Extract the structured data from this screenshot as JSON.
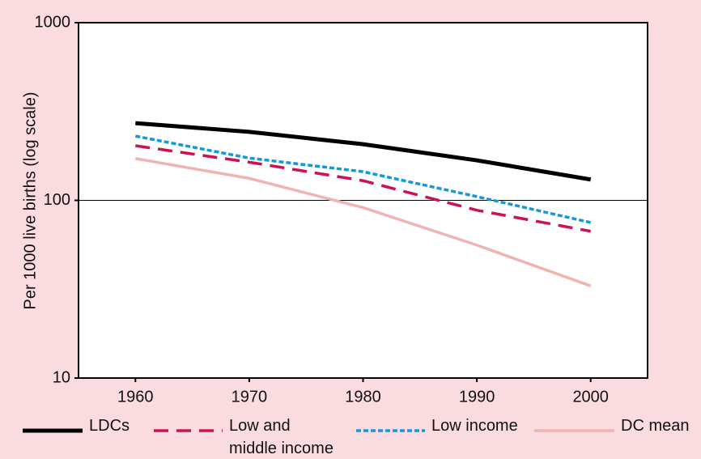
{
  "chart_data": {
    "type": "line",
    "y_label": "Per 1000 live births (log scale)",
    "x": [
      1960,
      1970,
      1980,
      1990,
      2000
    ],
    "xlim": [
      1955,
      2005
    ],
    "xticks": [
      1960,
      1970,
      1980,
      1990,
      2000
    ],
    "ylim": [
      10,
      1000
    ],
    "yticks": [
      10,
      100,
      1000
    ],
    "log_scale": true,
    "hline": 100,
    "series": [
      {
        "name": "LDCs",
        "color": "#000000",
        "style": "solid",
        "width": 5,
        "values": [
          272,
          243,
          207,
          168,
          131
        ]
      },
      {
        "name": "Low and\nmiddle income",
        "color": "#cc1155",
        "style": "dashed",
        "width": 3.5,
        "values": [
          203,
          164,
          129,
          88,
          67
        ]
      },
      {
        "name": "Low income",
        "color": "#1199dd",
        "style": "dotted",
        "width": 3.5,
        "values": [
          230,
          173,
          145,
          105,
          75
        ]
      },
      {
        "name": "DC mean",
        "color": "#f0b4b0",
        "style": "solid",
        "width": 3.5,
        "values": [
          172,
          133,
          91,
          56,
          33
        ]
      }
    ]
  }
}
